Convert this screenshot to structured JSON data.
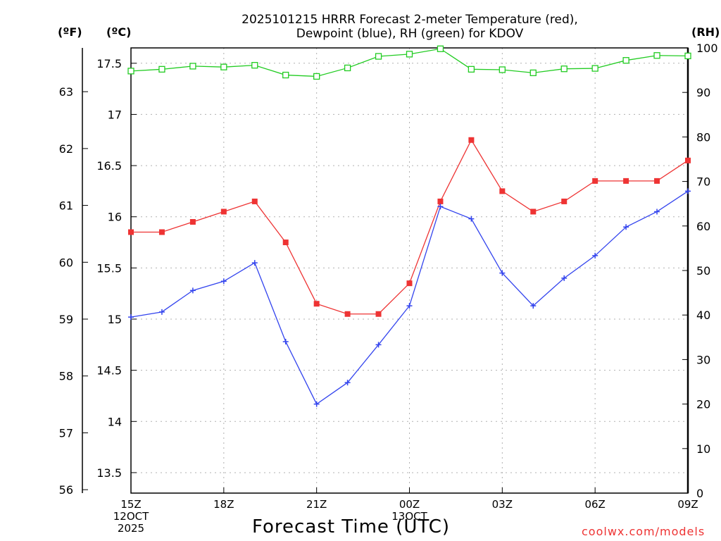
{
  "chart_data": {
    "type": "line",
    "title_line1": "2025101215 HRRR Forecast 2-meter Temperature (red),",
    "title_line2": "Dewpoint (blue), RH (green) for KDOV",
    "axis_units": {
      "fahrenheit": "(ºF)",
      "celsius": "(ºC)",
      "rh": "(RH)"
    },
    "xlabel": "Forecast Time (UTC)",
    "credit": "coolwx.com/models",
    "x_hours": [
      0,
      1,
      2,
      3,
      4,
      5,
      6,
      7,
      8,
      9,
      10,
      11,
      12,
      13,
      14,
      15,
      16,
      17,
      18
    ],
    "x_ticks": [
      {
        "hour": 0,
        "lines": [
          "15Z",
          "12OCT",
          "2025"
        ]
      },
      {
        "hour": 3,
        "lines": [
          "18Z"
        ]
      },
      {
        "hour": 6,
        "lines": [
          "21Z"
        ]
      },
      {
        "hour": 9,
        "lines": [
          "00Z",
          "13OCT"
        ]
      },
      {
        "hour": 12,
        "lines": [
          "03Z"
        ]
      },
      {
        "hour": 15,
        "lines": [
          "06Z"
        ]
      },
      {
        "hour": 18,
        "lines": [
          "09Z"
        ]
      }
    ],
    "celsius_range": [
      13.3,
      17.65
    ],
    "celsius_ticks": [
      "13.5",
      "14",
      "14.5",
      "15",
      "15.5",
      "16",
      "16.5",
      "17",
      "17.5"
    ],
    "fahrenheit_ticks": [
      "56",
      "57",
      "58",
      "59",
      "60",
      "61",
      "62",
      "63"
    ],
    "rh_range": [
      0,
      100
    ],
    "rh_ticks": [
      "0",
      "10",
      "20",
      "30",
      "40",
      "50",
      "60",
      "70",
      "80",
      "90",
      "100"
    ],
    "series": [
      {
        "name": "Temperature",
        "unit": "C",
        "color": "#ee3333",
        "marker": "filled-square",
        "values": [
          15.85,
          15.85,
          15.95,
          16.05,
          16.15,
          15.75,
          15.15,
          15.05,
          15.05,
          15.35,
          16.15,
          16.75,
          16.25,
          16.05,
          16.15,
          16.35,
          16.35,
          16.35,
          16.55
        ]
      },
      {
        "name": "Dewpoint",
        "unit": "C",
        "color": "#3344ee",
        "marker": "plus",
        "values": [
          15.02,
          15.07,
          15.28,
          15.37,
          15.55,
          14.78,
          14.17,
          14.38,
          14.75,
          15.13,
          16.1,
          15.98,
          15.45,
          15.13,
          15.4,
          15.62,
          15.9,
          16.05,
          16.25
        ]
      },
      {
        "name": "RH",
        "unit": "%",
        "color": "#22cc22",
        "marker": "open-square",
        "values": [
          94.8,
          95.2,
          95.9,
          95.7,
          96.1,
          93.9,
          93.6,
          95.5,
          98.1,
          98.6,
          99.8,
          95.2,
          95.1,
          94.4,
          95.3,
          95.4,
          97.2,
          98.3,
          98.2
        ]
      }
    ]
  }
}
